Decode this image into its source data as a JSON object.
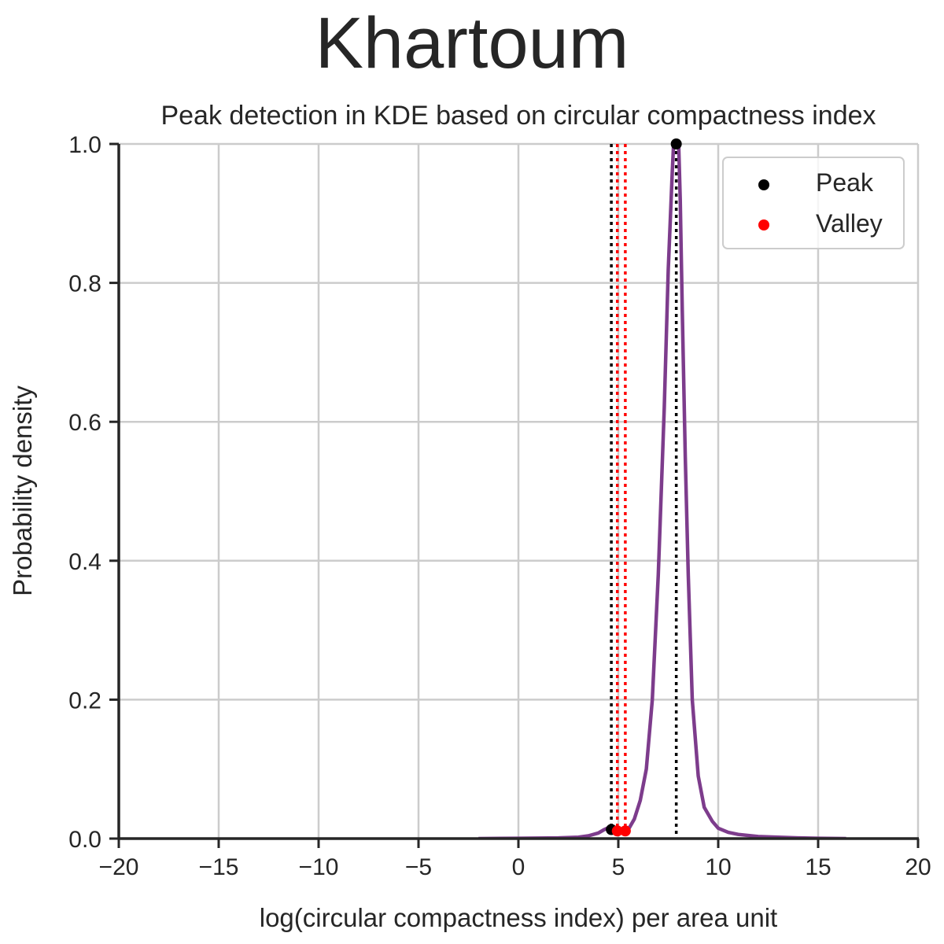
{
  "chart_data": {
    "type": "line",
    "suptitle": "Khartoum",
    "title": "Peak detection in KDE based on circular compactness index",
    "xlabel": "log(circular compactness index) per area unit",
    "ylabel": "Probability density",
    "xlim": [
      -20,
      20
    ],
    "ylim": [
      0,
      1.0
    ],
    "grid": true,
    "legend_placement": "top-right",
    "x_ticks": [
      -20,
      -15,
      -10,
      -5,
      0,
      5,
      10,
      15,
      20
    ],
    "x_tick_labels": [
      "−20",
      "−15",
      "−10",
      "−5",
      "0",
      "5",
      "10",
      "15",
      "20"
    ],
    "y_ticks": [
      0.0,
      0.2,
      0.4,
      0.6,
      0.8,
      1.0
    ],
    "y_tick_labels": [
      "0.0",
      "0.2",
      "0.4",
      "0.6",
      "0.8",
      "1.0"
    ],
    "kde_series": {
      "color": "#7d3c8c",
      "x": [
        -2.0,
        0.0,
        2.0,
        3.0,
        3.5,
        4.0,
        4.3,
        4.6,
        4.75,
        4.9,
        5.1,
        5.3,
        5.5,
        5.8,
        6.1,
        6.4,
        6.7,
        7.0,
        7.3,
        7.5,
        7.7,
        7.8,
        7.9,
        8.0,
        8.1,
        8.2,
        8.35,
        8.5,
        8.7,
        9.0,
        9.3,
        9.7,
        10.0,
        10.5,
        11.0,
        12.0,
        13.0,
        14.0,
        15.0,
        16.4
      ],
      "y": [
        0.0,
        0.0005,
        0.001,
        0.002,
        0.004,
        0.008,
        0.013,
        0.017,
        0.015,
        0.011,
        0.008,
        0.009,
        0.013,
        0.028,
        0.055,
        0.1,
        0.2,
        0.38,
        0.62,
        0.82,
        0.96,
        1.02,
        1.05,
        1.02,
        0.92,
        0.76,
        0.55,
        0.38,
        0.2,
        0.09,
        0.045,
        0.025,
        0.015,
        0.009,
        0.006,
        0.003,
        0.002,
        0.001,
        0.0005,
        0.0
      ]
    },
    "peaks": {
      "label": "Peak",
      "color": "#000000",
      "x": [
        4.65,
        7.9
      ],
      "y": [
        0.013,
        1.05
      ]
    },
    "valleys": {
      "label": "Valley",
      "color": "#ff0000",
      "x": [
        4.95,
        5.35
      ],
      "y": [
        0.011,
        0.011
      ]
    }
  }
}
